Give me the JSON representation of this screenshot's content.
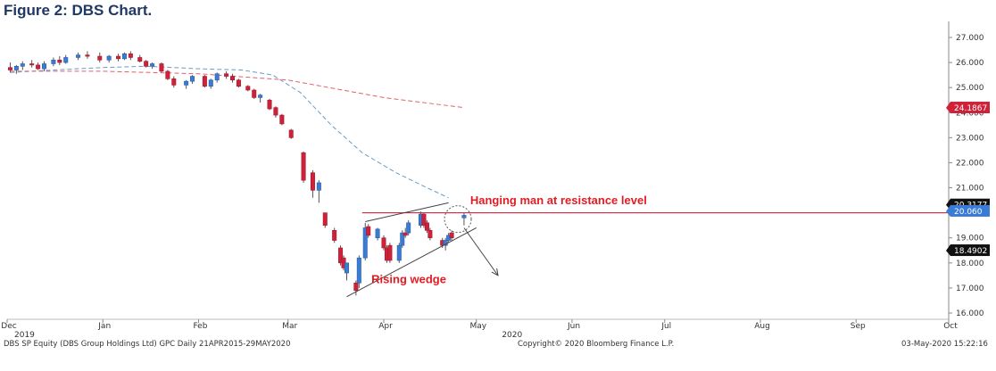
{
  "title": "Figure 2: DBS Chart.",
  "footer": {
    "left": "DBS SP Equity (DBS Group Holdings Ltd) GPC  Daily 21APR2015-29MAY2020",
    "center": "Copyright© 2020 Bloomberg Finance L.P.",
    "right": "03-May-2020 15:22:16"
  },
  "colors": {
    "up": "#3a7bd5",
    "down": "#d0213a",
    "ma_short": "#6a9cc4",
    "ma_long": "#e0606c",
    "annotation": "#e31b23",
    "resistance_line": "#c8102e",
    "wedge": "#444444"
  },
  "chart_data": {
    "type": "candlestick",
    "y_axis": {
      "position": "right",
      "ticks": [
        "16.000",
        "17.000",
        "18.000",
        "19.000",
        "20.000",
        "21.000",
        "22.000",
        "23.000",
        "24.000",
        "25.000",
        "26.000",
        "27.000"
      ],
      "range": [
        16,
        27.5
      ]
    },
    "x_axis": {
      "ticks": [
        "Dec",
        "Jan",
        "Feb",
        "Mar",
        "Apr",
        "May",
        "Jun",
        "Jul",
        "Aug",
        "Sep",
        "Oct"
      ],
      "year_labels": [
        "2019",
        "2020"
      ]
    },
    "ohlc": [
      {
        "date": "2019-12-02",
        "o": 25.8,
        "h": 26.0,
        "l": 25.6,
        "c": 25.7
      },
      {
        "date": "2019-12-04",
        "o": 25.7,
        "h": 25.9,
        "l": 25.55,
        "c": 25.85
      },
      {
        "date": "2019-12-06",
        "o": 25.85,
        "h": 26.05,
        "l": 25.7,
        "c": 25.95
      },
      {
        "date": "2019-12-09",
        "o": 25.95,
        "h": 26.1,
        "l": 25.8,
        "c": 25.9
      },
      {
        "date": "2019-12-11",
        "o": 25.9,
        "h": 26.0,
        "l": 25.7,
        "c": 25.75
      },
      {
        "date": "2019-12-13",
        "o": 25.75,
        "h": 26.05,
        "l": 25.65,
        "c": 25.95
      },
      {
        "date": "2019-12-16",
        "o": 25.95,
        "h": 26.2,
        "l": 25.85,
        "c": 26.1
      },
      {
        "date": "2019-12-18",
        "o": 26.1,
        "h": 26.25,
        "l": 25.9,
        "c": 26.0
      },
      {
        "date": "2019-12-20",
        "o": 26.0,
        "h": 26.3,
        "l": 25.95,
        "c": 26.2
      },
      {
        "date": "2019-12-24",
        "o": 26.2,
        "h": 26.4,
        "l": 26.1,
        "c": 26.3
      },
      {
        "date": "2019-12-27",
        "o": 26.3,
        "h": 26.45,
        "l": 26.15,
        "c": 26.25
      },
      {
        "date": "2019-12-31",
        "o": 26.25,
        "h": 26.4,
        "l": 26.0,
        "c": 26.1
      },
      {
        "date": "2020-01-03",
        "o": 26.1,
        "h": 26.3,
        "l": 26.0,
        "c": 26.25
      },
      {
        "date": "2020-01-06",
        "o": 26.25,
        "h": 26.35,
        "l": 26.05,
        "c": 26.15
      },
      {
        "date": "2020-01-08",
        "o": 26.15,
        "h": 26.4,
        "l": 26.1,
        "c": 26.35
      },
      {
        "date": "2020-01-10",
        "o": 26.35,
        "h": 26.45,
        "l": 26.1,
        "c": 26.2
      },
      {
        "date": "2020-01-13",
        "o": 26.2,
        "h": 26.3,
        "l": 26.0,
        "c": 26.05
      },
      {
        "date": "2020-01-15",
        "o": 26.05,
        "h": 26.1,
        "l": 25.8,
        "c": 25.85
      },
      {
        "date": "2020-01-17",
        "o": 25.85,
        "h": 26.0,
        "l": 25.75,
        "c": 25.95
      },
      {
        "date": "2020-01-20",
        "o": 25.95,
        "h": 26.0,
        "l": 25.6,
        "c": 25.65
      },
      {
        "date": "2020-01-22",
        "o": 25.65,
        "h": 25.7,
        "l": 25.3,
        "c": 25.35
      },
      {
        "date": "2020-01-24",
        "o": 25.35,
        "h": 25.45,
        "l": 25.0,
        "c": 25.1
      },
      {
        "date": "2020-01-28",
        "o": 25.1,
        "h": 25.3,
        "l": 24.95,
        "c": 25.25
      },
      {
        "date": "2020-01-30",
        "o": 25.25,
        "h": 25.5,
        "l": 25.15,
        "c": 25.45
      },
      {
        "date": "2020-02-03",
        "o": 25.45,
        "h": 25.5,
        "l": 25.0,
        "c": 25.05
      },
      {
        "date": "2020-02-05",
        "o": 25.05,
        "h": 25.35,
        "l": 24.95,
        "c": 25.3
      },
      {
        "date": "2020-02-07",
        "o": 25.3,
        "h": 25.6,
        "l": 25.2,
        "c": 25.55
      },
      {
        "date": "2020-02-10",
        "o": 25.55,
        "h": 25.65,
        "l": 25.35,
        "c": 25.45
      },
      {
        "date": "2020-02-12",
        "o": 25.45,
        "h": 25.55,
        "l": 25.2,
        "c": 25.3
      },
      {
        "date": "2020-02-14",
        "o": 25.3,
        "h": 25.35,
        "l": 25.0,
        "c": 25.05
      },
      {
        "date": "2020-02-17",
        "o": 25.05,
        "h": 25.1,
        "l": 24.85,
        "c": 24.9
      },
      {
        "date": "2020-02-19",
        "o": 24.9,
        "h": 24.95,
        "l": 24.55,
        "c": 24.6
      },
      {
        "date": "2020-02-21",
        "o": 24.6,
        "h": 24.75,
        "l": 24.4,
        "c": 24.7
      },
      {
        "date": "2020-02-24",
        "o": 24.5,
        "h": 24.55,
        "l": 24.1,
        "c": 24.15
      },
      {
        "date": "2020-02-26",
        "o": 24.2,
        "h": 24.25,
        "l": 23.8,
        "c": 23.9
      },
      {
        "date": "2020-02-28",
        "o": 23.9,
        "h": 23.95,
        "l": 23.5,
        "c": 23.55
      },
      {
        "date": "2020-03-02",
        "o": 23.3,
        "h": 23.35,
        "l": 22.95,
        "c": 23.0
      },
      {
        "date": "2020-03-06",
        "o": 22.4,
        "h": 22.45,
        "l": 21.2,
        "c": 21.3
      },
      {
        "date": "2020-03-09",
        "o": 21.6,
        "h": 21.7,
        "l": 20.6,
        "c": 20.9
      },
      {
        "date": "2020-03-11",
        "o": 20.9,
        "h": 21.3,
        "l": 20.4,
        "c": 21.2
      },
      {
        "date": "2020-03-13",
        "o": 20.0,
        "h": 20.0,
        "l": 19.4,
        "c": 19.5
      },
      {
        "date": "2020-03-16",
        "o": 19.3,
        "h": 19.4,
        "l": 18.8,
        "c": 18.9
      },
      {
        "date": "2020-03-18",
        "o": 18.6,
        "h": 18.7,
        "l": 17.9,
        "c": 18.0
      },
      {
        "date": "2020-03-19",
        "o": 18.2,
        "h": 18.3,
        "l": 17.7,
        "c": 17.8
      },
      {
        "date": "2020-03-20",
        "o": 17.6,
        "h": 18.0,
        "l": 17.3,
        "c": 18.0
      },
      {
        "date": "2020-03-23",
        "o": 17.2,
        "h": 17.3,
        "l": 16.7,
        "c": 16.9
      },
      {
        "date": "2020-03-24",
        "o": 17.2,
        "h": 18.3,
        "l": 17.0,
        "c": 18.2
      },
      {
        "date": "2020-03-26",
        "o": 18.2,
        "h": 19.6,
        "l": 18.1,
        "c": 19.4
      },
      {
        "date": "2020-03-27",
        "o": 19.45,
        "h": 19.55,
        "l": 19.0,
        "c": 19.1
      },
      {
        "date": "2020-03-30",
        "o": 19.0,
        "h": 19.4,
        "l": 18.9,
        "c": 19.35
      },
      {
        "date": "2020-04-01",
        "o": 19.0,
        "h": 19.1,
        "l": 18.5,
        "c": 18.6
      },
      {
        "date": "2020-04-02",
        "o": 18.6,
        "h": 18.7,
        "l": 18.0,
        "c": 18.1
      },
      {
        "date": "2020-04-03",
        "o": 18.7,
        "h": 18.8,
        "l": 18.0,
        "c": 18.1
      },
      {
        "date": "2020-04-06",
        "o": 18.1,
        "h": 18.8,
        "l": 18.0,
        "c": 18.7
      },
      {
        "date": "2020-04-07",
        "o": 18.7,
        "h": 19.3,
        "l": 18.6,
        "c": 19.2
      },
      {
        "date": "2020-04-08",
        "o": 19.2,
        "h": 19.4,
        "l": 19.0,
        "c": 19.1
      },
      {
        "date": "2020-04-09",
        "o": 19.2,
        "h": 19.7,
        "l": 19.1,
        "c": 19.6
      },
      {
        "date": "2020-04-13",
        "o": 19.5,
        "h": 20.05,
        "l": 19.4,
        "c": 19.95
      },
      {
        "date": "2020-04-14",
        "o": 19.95,
        "h": 20.0,
        "l": 19.4,
        "c": 19.5
      },
      {
        "date": "2020-04-15",
        "o": 19.6,
        "h": 19.7,
        "l": 19.2,
        "c": 19.3
      },
      {
        "date": "2020-04-16",
        "o": 19.3,
        "h": 19.4,
        "l": 18.9,
        "c": 19.0
      },
      {
        "date": "2020-04-20",
        "o": 18.9,
        "h": 19.0,
        "l": 18.6,
        "c": 18.7
      },
      {
        "date": "2020-04-21",
        "o": 18.7,
        "h": 19.0,
        "l": 18.5,
        "c": 18.9
      },
      {
        "date": "2020-04-22",
        "o": 18.9,
        "h": 19.2,
        "l": 18.8,
        "c": 19.1
      },
      {
        "date": "2020-04-23",
        "o": 19.2,
        "h": 19.3,
        "l": 18.9,
        "c": 19.0
      },
      {
        "date": "2020-04-27",
        "o": 19.8,
        "h": 20.0,
        "l": 19.5,
        "c": 19.9
      }
    ],
    "moving_averages": [
      {
        "style": "dashed",
        "color": "#6a9cc4",
        "points": [
          [
            "2019-12-02",
            25.6
          ],
          [
            "2019-12-16",
            25.7
          ],
          [
            "2020-01-01",
            25.8
          ],
          [
            "2020-01-15",
            25.85
          ],
          [
            "2020-02-01",
            25.75
          ],
          [
            "2020-02-15",
            25.7
          ],
          [
            "2020-02-25",
            25.5
          ],
          [
            "2020-03-05",
            24.8
          ],
          [
            "2020-03-15",
            23.5
          ],
          [
            "2020-03-25",
            22.4
          ],
          [
            "2020-04-05",
            21.6
          ],
          [
            "2020-04-15",
            21.0
          ],
          [
            "2020-04-22",
            20.6
          ]
        ]
      },
      {
        "style": "dashed",
        "color": "#e0606c",
        "points": [
          [
            "2019-12-02",
            25.65
          ],
          [
            "2020-01-01",
            25.65
          ],
          [
            "2020-02-01",
            25.55
          ],
          [
            "2020-03-01",
            25.3
          ],
          [
            "2020-04-01",
            24.6
          ],
          [
            "2020-04-27",
            24.2
          ]
        ]
      }
    ],
    "price_labels": [
      {
        "text": "24.1867",
        "value": 24.1867,
        "bg": "#d0213a",
        "fg": "#ffffff"
      },
      {
        "text": "20.3177",
        "value": 20.3177,
        "bg": "#111111",
        "fg": "#ffffff"
      },
      {
        "text": "20.060",
        "value": 20.06,
        "bg": "#3a7bd5",
        "fg": "#ffffff"
      },
      {
        "text": "18.4902",
        "value": 18.4902,
        "bg": "#111111",
        "fg": "#ffffff"
      }
    ],
    "resistance_level": 20.0,
    "wedge": {
      "upper": [
        [
          "2020-03-26",
          19.65
        ],
        [
          "2020-04-22",
          20.4
        ]
      ],
      "lower": [
        [
          "2020-03-20",
          16.65
        ],
        [
          "2020-05-01",
          19.4
        ]
      ],
      "arrow_from": [
        "2020-04-27",
        19.4
      ],
      "arrow_to": [
        "2020-05-08",
        17.5
      ]
    },
    "highlight_circle_center": [
      "2020-04-25",
      19.75
    ],
    "annotations": [
      {
        "text": "Hanging man at resistance level",
        "date": "2020-04-29",
        "value": 20.35
      },
      {
        "text": "Rising wedge",
        "date": "2020-03-28",
        "value": 17.2
      }
    ]
  }
}
